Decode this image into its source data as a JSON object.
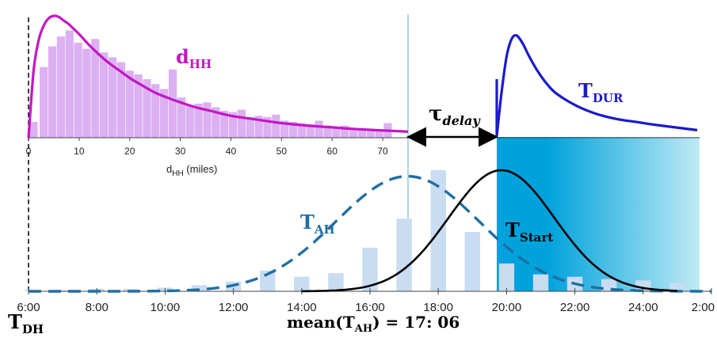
{
  "colors": {
    "dhh_curve": "#c218c2",
    "dhh_bars": "#dcb0f2",
    "tdur_curve": "#1a1acc",
    "tah_curve": "#1f6fa0",
    "tah_bars": "#c8dcf2",
    "tstart_curve": "#000000",
    "fill_dark": "#00a2dc",
    "fill_light": "#bfeaf5"
  },
  "labels": {
    "dhh": {
      "main": "d",
      "sub": "HH"
    },
    "tdur": {
      "main": "T",
      "sub": "DUR"
    },
    "tah": {
      "main": "T",
      "sub": "AH"
    },
    "tstart": {
      "main": "T",
      "sub": "Start"
    },
    "tdh": {
      "main": "T",
      "sub": "DH"
    },
    "tau": {
      "main": "τ",
      "sub": "delay"
    },
    "mean": {
      "before": "mean(T",
      "sub": "AH",
      "after": ") = 17: 06"
    }
  },
  "chart_data": [
    {
      "type": "bar",
      "title": "",
      "xlabel": "d_HH (miles)",
      "xlabel_main": "d",
      "xlabel_sub": "HH",
      "xlabel_tail": " (miles)",
      "xlim": [
        0,
        75
      ],
      "x_ticks": [
        "0",
        "10",
        "20",
        "30",
        "40",
        "50",
        "60",
        "70"
      ],
      "x_tick_values": [
        0,
        10,
        20,
        30,
        40,
        50,
        60,
        70
      ],
      "bar_width": 1.6,
      "bar_x": [
        1,
        3,
        4.7,
        6.4,
        8.1,
        9.8,
        11.5,
        13.2,
        14.9,
        16.6,
        18.3,
        20,
        21.7,
        23.4,
        25.1,
        26.8,
        28.5,
        30.2,
        31.9,
        33.6,
        35.3,
        37,
        38.7,
        40.4,
        42.1,
        43.8,
        45.5,
        47.2,
        48.9,
        50.6,
        52.3,
        54,
        55.7,
        57.4,
        59.1,
        60.8,
        62.5,
        64.2,
        65.9,
        67.6,
        69.3,
        71
      ],
      "bar_values": [
        0.13,
        0.58,
        0.75,
        0.83,
        0.88,
        0.78,
        0.73,
        0.81,
        0.7,
        0.66,
        0.62,
        0.55,
        0.52,
        0.48,
        0.44,
        0.4,
        0.56,
        0.33,
        0.27,
        0.28,
        0.29,
        0.25,
        0.22,
        0.21,
        0.23,
        0.17,
        0.18,
        0.17,
        0.19,
        0.14,
        0.13,
        0.12,
        0.11,
        0.14,
        0.1,
        0.09,
        0.1,
        0.08,
        0.08,
        0.07,
        0.07,
        0.12
      ],
      "series": [
        {
          "name": "d_HH",
          "kind": "curve",
          "x": [
            0,
            1,
            2,
            3,
            4,
            5,
            6,
            7,
            8,
            9,
            10,
            12,
            14,
            16,
            18,
            20,
            22,
            25,
            28,
            30,
            33,
            36,
            40,
            45,
            50,
            55,
            60,
            65,
            70,
            75
          ],
          "y": [
            0,
            0.55,
            0.8,
            0.92,
            0.98,
            1.0,
            0.99,
            0.96,
            0.93,
            0.89,
            0.85,
            0.76,
            0.68,
            0.61,
            0.55,
            0.49,
            0.44,
            0.37,
            0.32,
            0.29,
            0.25,
            0.22,
            0.18,
            0.15,
            0.12,
            0.1,
            0.085,
            0.07,
            0.06,
            0.05
          ]
        }
      ]
    },
    {
      "type": "line",
      "title": "",
      "xlabel": "",
      "xlim": [
        6,
        26
      ],
      "x_ticks": [
        "6:00",
        "8:00",
        "10:00",
        "12:00",
        "14:00",
        "16:00",
        "18:00",
        "20:00",
        "22:00",
        "24:00",
        "2:00"
      ],
      "x_tick_values": [
        6,
        8,
        10,
        12,
        14,
        16,
        18,
        20,
        22,
        24,
        26
      ],
      "bar_width": 0.45,
      "bar_x": [
        6.1,
        7.0,
        8.0,
        9.0,
        10.0,
        11.0,
        12.0,
        13.0,
        14.0,
        15.0,
        16.0,
        17.0,
        18.0,
        19.0,
        20.0,
        21.0,
        22.0,
        23.0,
        24.0,
        25.0
      ],
      "bar_values": [
        0.01,
        0.01,
        0.02,
        0.02,
        0.03,
        0.05,
        0.08,
        0.17,
        0.12,
        0.15,
        0.36,
        0.6,
        1.0,
        0.49,
        0.23,
        0.14,
        0.12,
        0.1,
        0.09,
        0.07
      ],
      "series": [
        {
          "name": "T_AH",
          "kind": "dashed",
          "mu": 17.1,
          "sigma": 2.1,
          "peak": 0.95
        },
        {
          "name": "T_Start",
          "kind": "solid",
          "mu": 19.85,
          "sigma": 1.55,
          "peak": 1.0
        }
      ]
    },
    {
      "type": "line",
      "title": "",
      "series": [
        {
          "name": "T_DUR",
          "kind": "curve",
          "x": [
            0,
            0.25,
            0.5,
            0.75,
            1.0,
            1.3,
            1.6,
            2.0,
            2.5,
            3.0,
            4.0,
            5.0,
            6.0,
            7.0,
            8.0,
            10.0
          ],
          "y": [
            0,
            0.45,
            0.8,
            0.97,
            1.0,
            0.92,
            0.8,
            0.66,
            0.52,
            0.42,
            0.3,
            0.22,
            0.17,
            0.14,
            0.11,
            0.06
          ]
        }
      ]
    }
  ]
}
